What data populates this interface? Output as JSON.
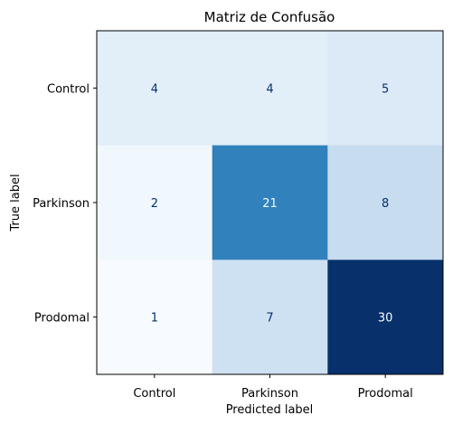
{
  "chart_data": {
    "type": "heatmap",
    "title": "Matriz de Confusão",
    "xlabel": "Predicted label",
    "ylabel": "True label",
    "x_categories": [
      "Control",
      "Parkinson",
      "Prodomal"
    ],
    "y_categories": [
      "Control",
      "Parkinson",
      "Prodomal"
    ],
    "values": [
      [
        4,
        4,
        5
      ],
      [
        2,
        21,
        8
      ],
      [
        1,
        7,
        30
      ]
    ],
    "colormap": "Blues",
    "colorbar": false,
    "grid": false
  },
  "colors": {
    "low": "#f7fbff",
    "high": "#08306b",
    "text_dark": "#08306b",
    "text_light": "#f7fbff"
  }
}
